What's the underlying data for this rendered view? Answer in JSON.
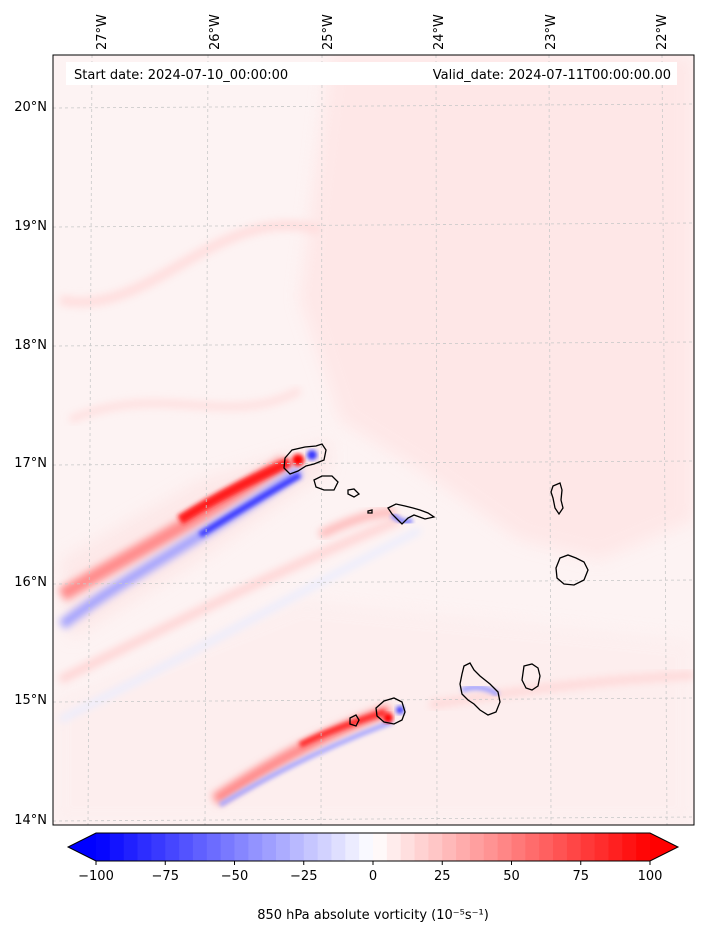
{
  "header": {
    "start_date": "Start date: 2024-07-10_00:00:00",
    "valid_date": "Valid_date: 2024-07-11T00:00:00.00"
  },
  "map": {
    "lon_labels": [
      "27°W",
      "26°W",
      "25°W",
      "24°W",
      "23°W",
      "22°W"
    ],
    "lat_labels": [
      "20°N",
      "19°N",
      "18°N",
      "17°N",
      "16°N",
      "15°N",
      "14°N"
    ],
    "islands": [
      "Santo Antão",
      "São Vicente",
      "Santa Luzia",
      "Ilhéu Raso",
      "São Nicolau",
      "Sal",
      "Boa Vista",
      "Brava",
      "Fogo",
      "Santiago",
      "Maio"
    ]
  },
  "colorbar": {
    "label": "850 hPa absolute vorticity (10⁻⁵s⁻¹)",
    "min": -100,
    "max": 100,
    "tick_labels": [
      "−100",
      "−75",
      "−50",
      "−25",
      "0",
      "25",
      "50",
      "75",
      "100"
    ],
    "color_low": "#0000ff",
    "color_mid": "#ffffff",
    "color_high": "#ff0000"
  },
  "colors": {
    "frame": "#000000",
    "gridline": "#c8c8c8",
    "background_tint": "#fdf1f1"
  }
}
